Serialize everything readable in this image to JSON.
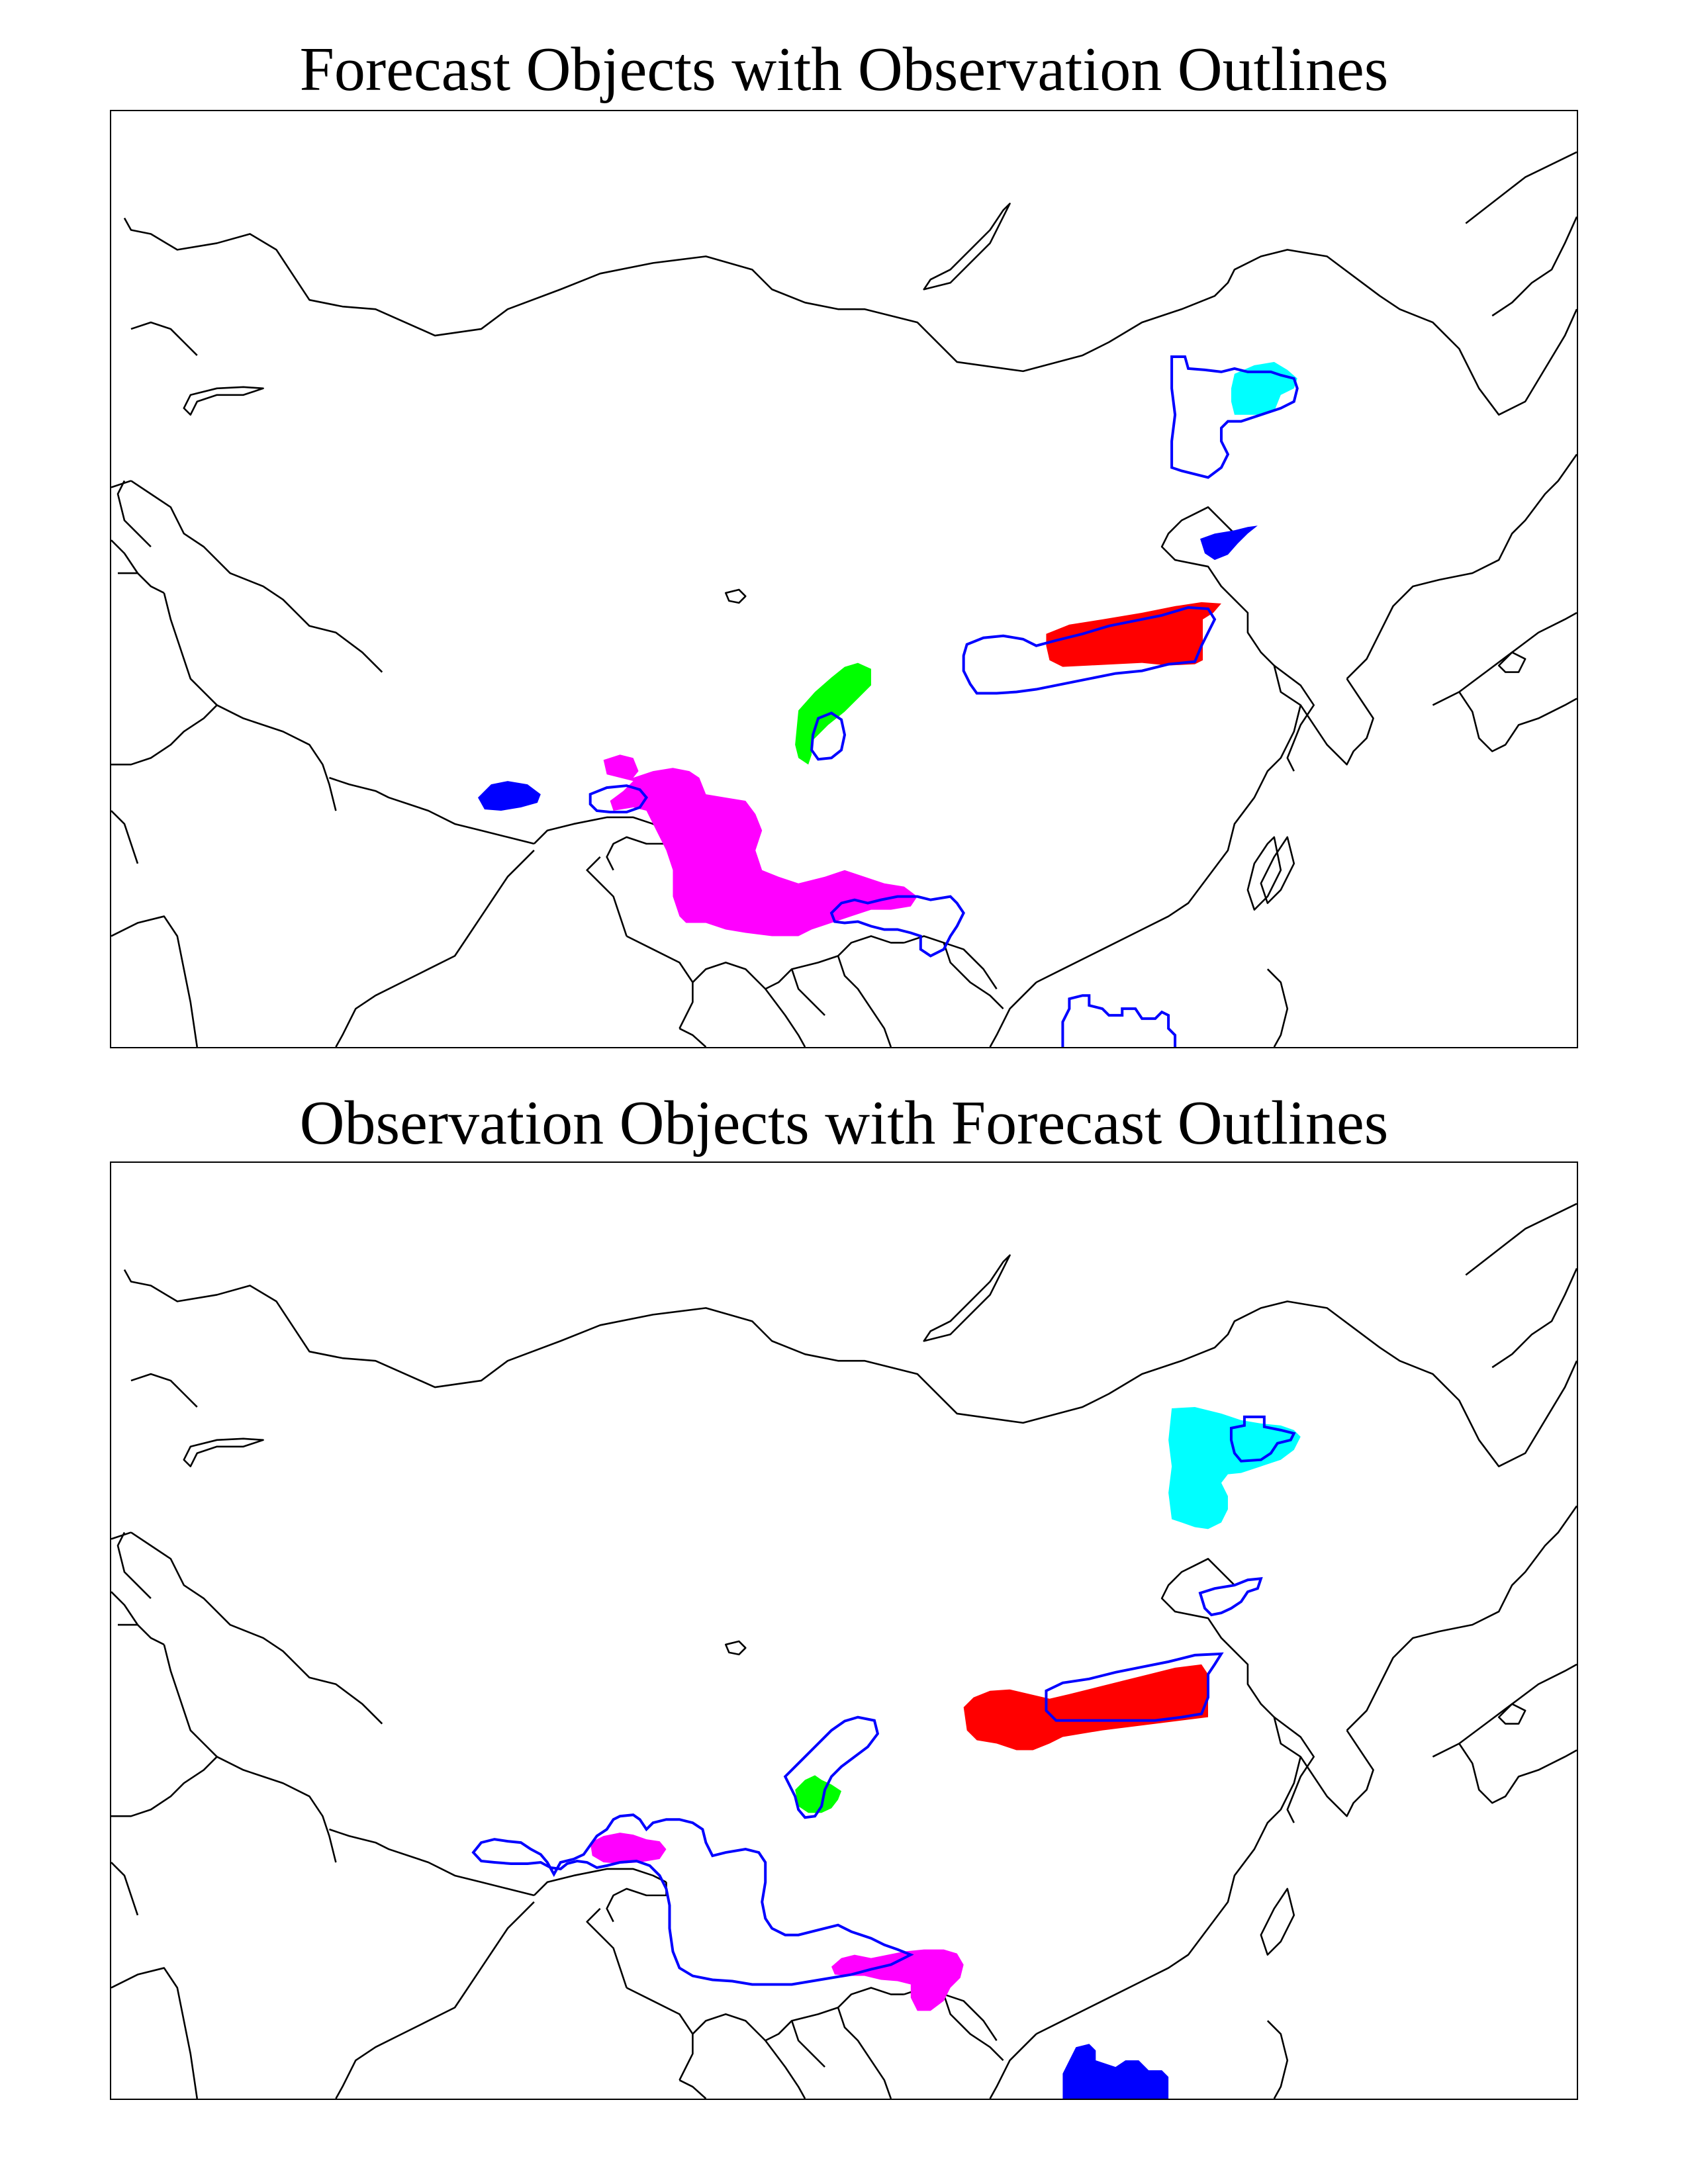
{
  "panels": [
    {
      "title": "Forecast Objects with Observation Outlines"
    },
    {
      "title": "Observation Objects with Forecast Outlines"
    }
  ],
  "colors": {
    "cyan": "#00ffff",
    "blue": "#0000ff",
    "red": "#ff0000",
    "green": "#00ff00",
    "magenta": "#ff00ff",
    "outline": "#0000ff",
    "coastline": "#000000"
  }
}
